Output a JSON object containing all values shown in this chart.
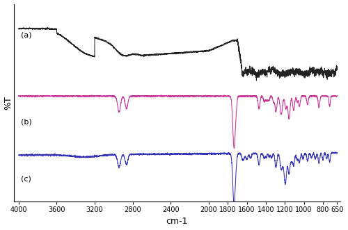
{
  "xlabel": "cm-1",
  "ylabel": "%T",
  "xlim": [
    4000,
    650
  ],
  "xticks": [
    4000,
    3600,
    3200,
    2800,
    2400,
    2000,
    1800,
    1600,
    1400,
    1200,
    1000,
    800,
    650
  ],
  "colors": {
    "a": "#222222",
    "b": "#cc3399",
    "c": "#3333bb"
  },
  "labels": {
    "a": "(a)",
    "b": "(b)",
    "c": "(c)"
  }
}
